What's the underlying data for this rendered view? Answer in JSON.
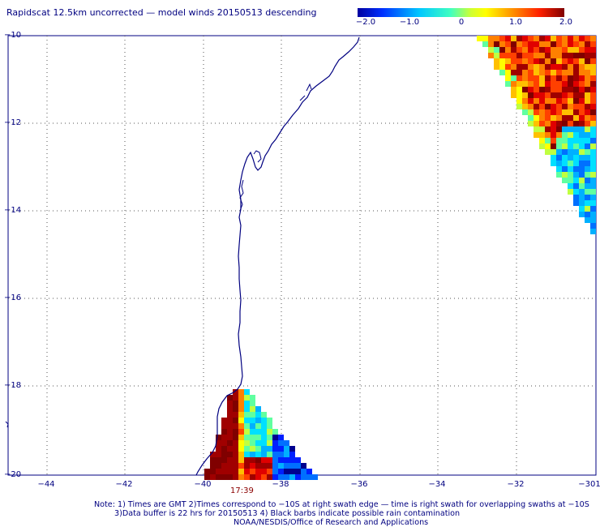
{
  "title": "Rapidscat 12.5km uncorrected — model winds 20150513 descending",
  "colorbar": {
    "tick_labels": [
      "−2.0",
      "−1.0",
      "0",
      "1.0",
      "2.0"
    ],
    "colors": [
      "#0000a0",
      "#0040ff",
      "#00c0ff",
      "#40ffc0",
      "#c0ff40",
      "#ffff00",
      "#ffa000",
      "#ff4000",
      "#c00000",
      "#800000"
    ]
  },
  "axes": {
    "y_labels": [
      "−10",
      "−12",
      "−14",
      "−16",
      "−18",
      "−20"
    ],
    "x_labels": [
      "−44",
      "−42",
      "−40",
      "−38",
      "−36",
      "−34",
      "−32",
      "−301"
    ],
    "lat_range": [
      -20,
      -10
    ],
    "lon_range": [
      -45,
      -30
    ],
    "grid": "dotted"
  },
  "time_label": "17:39",
  "notes": [
    "Note: 1) Times are GMT 2)Times correspond to −10S at right swath edge — time is right swath for overlapping swaths at −10S",
    "3)Data buffer is 22 hrs for 20150513 4) Black barbs indicate possible rain contamination",
    "NOAA/NESDIS/Office of Research and Applications"
  ],
  "colors": {
    "text": "#000080",
    "coastline": "#000080",
    "grid": "#444444",
    "time_label": "#8b0000"
  }
}
